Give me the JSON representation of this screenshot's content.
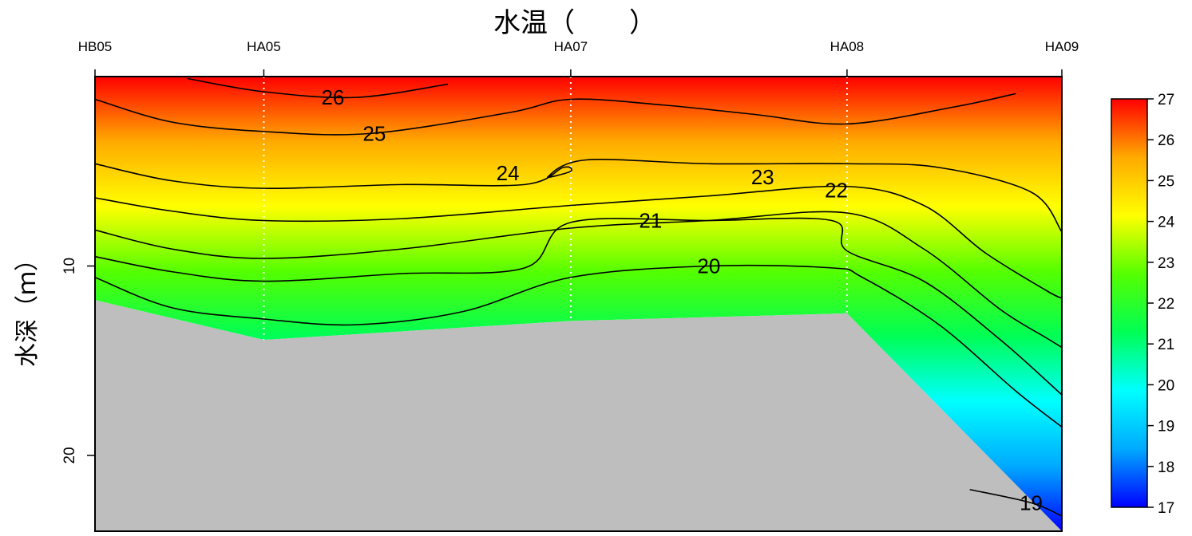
{
  "chart_data": {
    "type": "heatmap",
    "title": "水温（　　）",
    "ylabel": "水深（ｍ）",
    "xlabel": "",
    "stations": [
      {
        "name": "HB05",
        "x": 0,
        "bottom_depth": 11.8
      },
      {
        "name": "HA05",
        "x": 11,
        "bottom_depth": 13.9
      },
      {
        "name": "HA07",
        "x": 31,
        "bottom_depth": 12.9
      },
      {
        "name": "HA08",
        "x": 49,
        "bottom_depth": 12.5
      },
      {
        "name": "HA09",
        "x": 63,
        "bottom_depth": 24.0
      }
    ],
    "ylim": [
      24,
      0
    ],
    "yticks": [
      10,
      20
    ],
    "colorbar": {
      "min": 17,
      "max": 27,
      "ticks": [
        17,
        18,
        19,
        20,
        21,
        22,
        23,
        24,
        25,
        26,
        27
      ],
      "colors": [
        "#0000ff",
        "#00aaff",
        "#00ffff",
        "#00ff55",
        "#55ff00",
        "#ffff00",
        "#ffaa00",
        "#ff0000"
      ]
    },
    "isotherms": [
      {
        "value": 26,
        "points": [
          [
            6,
            0.1
          ],
          [
            11,
            0.8
          ],
          [
            17,
            1.1
          ],
          [
            23,
            0.4
          ]
        ],
        "label_at": [
          15.5,
          1.1
        ]
      },
      {
        "value": 25,
        "points": [
          [
            0,
            1.2
          ],
          [
            5,
            2.4
          ],
          [
            11,
            2.9
          ],
          [
            18,
            3.0
          ],
          [
            27,
            1.9
          ],
          [
            31,
            1.2
          ],
          [
            37,
            1.5
          ],
          [
            43,
            2.0
          ],
          [
            49,
            2.5
          ],
          [
            56,
            1.6
          ],
          [
            60,
            0.9
          ]
        ],
        "label_at": [
          18.2,
          3.0
        ]
      },
      {
        "value": 24,
        "points": [
          [
            0,
            4.6
          ],
          [
            5,
            5.5
          ],
          [
            11,
            5.9
          ],
          [
            20,
            5.7
          ],
          [
            28,
            5.7
          ],
          [
            30.5,
            4.8
          ],
          [
            31,
            5.0
          ],
          [
            29.5,
            5.3
          ],
          [
            32,
            4.4
          ],
          [
            40,
            4.6
          ],
          [
            49,
            4.6
          ],
          [
            55,
            4.8
          ],
          [
            61,
            6.1
          ],
          [
            63,
            8.2
          ]
        ],
        "label_at": [
          26.9,
          5.1
        ]
      },
      {
        "value": 23,
        "points": [
          [
            0,
            6.4
          ],
          [
            5,
            7.1
          ],
          [
            11,
            7.6
          ],
          [
            20,
            7.5
          ],
          [
            31,
            6.8
          ],
          [
            40,
            6.3
          ],
          [
            49,
            5.8
          ],
          [
            54,
            6.8
          ],
          [
            58,
            9.3
          ],
          [
            62,
            11.3
          ],
          [
            63,
            11.7
          ]
        ],
        "label_at": [
          43.5,
          5.3
        ]
      },
      {
        "value": 22,
        "points": [
          [
            0,
            8.1
          ],
          [
            5,
            9.1
          ],
          [
            11,
            9.6
          ],
          [
            20,
            9.1
          ],
          [
            31,
            8.0
          ],
          [
            40,
            7.6
          ],
          [
            49,
            7.2
          ],
          [
            54,
            9.1
          ],
          [
            59,
            12.3
          ],
          [
            62,
            13.8
          ],
          [
            63,
            14.3
          ]
        ],
        "label_at": [
          48.3,
          6.0
        ]
      },
      {
        "value": 21,
        "points": [
          [
            0,
            9.5
          ],
          [
            5,
            10.3
          ],
          [
            11,
            10.8
          ],
          [
            20,
            10.4
          ],
          [
            28,
            10.1
          ],
          [
            31,
            7.7
          ],
          [
            40,
            7.6
          ],
          [
            48,
            7.6
          ],
          [
            49,
            9.2
          ],
          [
            54,
            10.8
          ],
          [
            59,
            13.9
          ],
          [
            63,
            16.8
          ]
        ],
        "label_at": [
          36.2,
          7.6
        ]
      },
      {
        "value": 20,
        "points": [
          [
            0,
            10.6
          ],
          [
            5,
            12.2
          ],
          [
            11,
            12.8
          ],
          [
            17,
            13.1
          ],
          [
            24,
            12.4
          ],
          [
            31,
            10.6
          ],
          [
            40,
            10.0
          ],
          [
            48,
            10.1
          ],
          [
            50,
            10.6
          ],
          [
            55,
            13.1
          ],
          [
            60,
            16.6
          ],
          [
            63,
            18.5
          ]
        ],
        "label_at": [
          40.0,
          10.0
        ]
      },
      {
        "value": 19,
        "points": [
          [
            57,
            21.8
          ],
          [
            61,
            22.5
          ],
          [
            63,
            23.2
          ]
        ],
        "label_at": [
          61.0,
          22.5
        ]
      }
    ],
    "grid": false,
    "legend": "right"
  }
}
